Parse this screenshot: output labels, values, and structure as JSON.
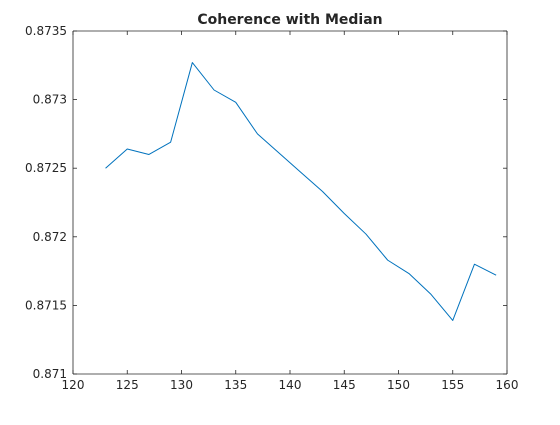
{
  "chart_data": {
    "type": "line",
    "title": "Coherence with Median",
    "xlabel": "",
    "ylabel": "",
    "xlim": [
      120,
      160
    ],
    "ylim": [
      0.871,
      0.8735
    ],
    "x_ticks": [
      "120",
      "125",
      "130",
      "135",
      "140",
      "145",
      "150",
      "155",
      "160"
    ],
    "y_ticks": [
      "0.871",
      "0.8715",
      "0.872",
      "0.8725",
      "0.873",
      "0.8735"
    ],
    "grid": false,
    "series": [
      {
        "color": "#0072bd",
        "x": [
          123,
          125,
          127,
          129,
          131,
          133,
          135,
          137,
          139,
          141,
          143,
          145,
          147,
          149,
          151,
          153,
          155,
          157,
          159
        ],
        "y": [
          0.8725,
          0.87264,
          0.8726,
          0.87269,
          0.87327,
          0.87307,
          0.87298,
          0.87275,
          0.87261,
          0.87247,
          0.87233,
          0.87217,
          0.87202,
          0.87183,
          0.87173,
          0.87158,
          0.87139,
          0.8718,
          0.87172
        ]
      }
    ]
  }
}
